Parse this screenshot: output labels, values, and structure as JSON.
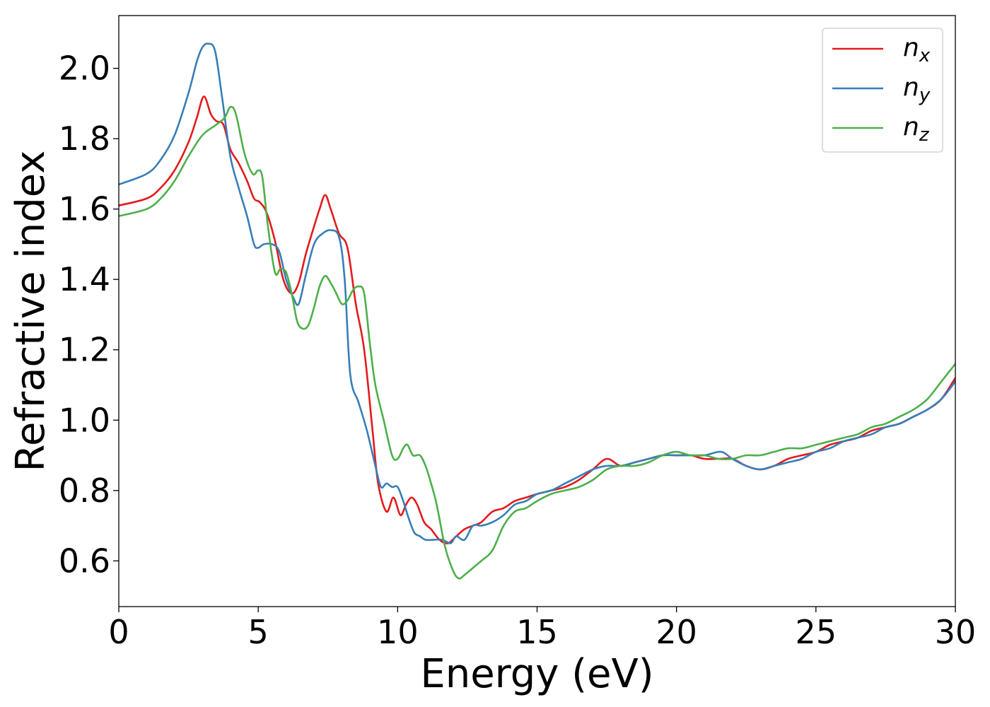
{
  "chart_data": {
    "type": "line",
    "title": "",
    "xlabel": "Energy (eV)",
    "ylabel": "Refractive index",
    "xlim": [
      0,
      30
    ],
    "ylim": [
      0.47,
      2.15
    ],
    "xticks": [
      0,
      5,
      10,
      15,
      20,
      25,
      30
    ],
    "xtick_labels": [
      "0",
      "5",
      "10",
      "15",
      "20",
      "25",
      "30"
    ],
    "yticks": [
      0.6,
      0.8,
      1.0,
      1.2,
      1.4,
      1.6,
      1.8,
      2.0
    ],
    "ytick_labels": [
      "0.6",
      "0.8",
      "1.0",
      "1.2",
      "1.4",
      "1.6",
      "1.8",
      "2.0"
    ],
    "grid": false,
    "legend_position": "top-right",
    "series": [
      {
        "name": "n_x",
        "label_base": "n",
        "label_sub": "x",
        "color": "#e41a1c",
        "x": [
          0,
          1,
          1.5,
          2,
          2.5,
          2.8,
          3.05,
          3.3,
          3.5,
          3.75,
          4.0,
          4.3,
          4.6,
          4.85,
          5.05,
          5.3,
          5.6,
          5.9,
          6.2,
          6.45,
          6.7,
          7.0,
          7.2,
          7.4,
          7.6,
          7.9,
          8.2,
          8.5,
          8.8,
          9.1,
          9.3,
          9.6,
          9.85,
          10.1,
          10.3,
          10.5,
          10.7,
          10.95,
          11.2,
          11.5,
          11.8,
          12.1,
          12.4,
          12.7,
          13.0,
          13.4,
          13.8,
          14.2,
          14.6,
          15.0,
          15.5,
          16.0,
          16.5,
          17.0,
          17.5,
          18.0,
          18.5,
          19.0,
          19.5,
          20.0,
          20.5,
          21.0,
          21.5,
          22.0,
          22.5,
          23.0,
          23.5,
          24.0,
          24.5,
          25.0,
          25.5,
          26.0,
          26.5,
          27.0,
          27.5,
          28.0,
          28.5,
          29.0,
          29.5,
          30.0
        ],
        "y": [
          1.61,
          1.63,
          1.66,
          1.71,
          1.79,
          1.86,
          1.92,
          1.87,
          1.85,
          1.84,
          1.77,
          1.73,
          1.68,
          1.63,
          1.62,
          1.59,
          1.51,
          1.4,
          1.36,
          1.39,
          1.47,
          1.55,
          1.6,
          1.64,
          1.6,
          1.53,
          1.49,
          1.33,
          1.2,
          0.97,
          0.82,
          0.74,
          0.78,
          0.73,
          0.76,
          0.78,
          0.76,
          0.71,
          0.69,
          0.66,
          0.65,
          0.67,
          0.69,
          0.7,
          0.71,
          0.74,
          0.75,
          0.77,
          0.78,
          0.79,
          0.8,
          0.81,
          0.83,
          0.86,
          0.89,
          0.87,
          0.88,
          0.89,
          0.9,
          0.9,
          0.9,
          0.89,
          0.89,
          0.89,
          0.87,
          0.86,
          0.87,
          0.89,
          0.9,
          0.91,
          0.93,
          0.94,
          0.95,
          0.97,
          0.98,
          0.99,
          1.01,
          1.03,
          1.06,
          1.12
        ]
      },
      {
        "name": "n_y",
        "label_base": "n",
        "label_sub": "y",
        "color": "#377eb8",
        "x": [
          0,
          1,
          1.5,
          2,
          2.5,
          2.8,
          3.0,
          3.2,
          3.45,
          3.7,
          4.0,
          4.3,
          4.6,
          4.85,
          5.0,
          5.2,
          5.5,
          5.75,
          6.0,
          6.25,
          6.45,
          6.7,
          7.0,
          7.3,
          7.6,
          7.9,
          8.1,
          8.3,
          8.6,
          8.9,
          9.2,
          9.4,
          9.6,
          9.8,
          10.0,
          10.2,
          10.4,
          10.6,
          10.8,
          11.0,
          11.3,
          11.6,
          11.9,
          12.1,
          12.4,
          12.7,
          13.0,
          13.4,
          13.8,
          14.2,
          14.6,
          15.0,
          15.5,
          16.0,
          16.5,
          17.0,
          17.5,
          18.0,
          18.5,
          19.0,
          19.5,
          20.0,
          20.5,
          21.0,
          21.6,
          22.0,
          22.5,
          23.0,
          23.5,
          24.0,
          24.5,
          25.0,
          25.5,
          26.0,
          26.5,
          27.0,
          27.5,
          28.0,
          28.5,
          29.0,
          29.5,
          30.0
        ],
        "y": [
          1.67,
          1.7,
          1.74,
          1.81,
          1.93,
          2.02,
          2.06,
          2.07,
          2.05,
          1.92,
          1.75,
          1.66,
          1.58,
          1.5,
          1.49,
          1.5,
          1.5,
          1.48,
          1.4,
          1.35,
          1.33,
          1.41,
          1.5,
          1.53,
          1.54,
          1.52,
          1.4,
          1.13,
          1.05,
          0.97,
          0.87,
          0.81,
          0.82,
          0.81,
          0.81,
          0.77,
          0.72,
          0.68,
          0.67,
          0.66,
          0.66,
          0.66,
          0.65,
          0.67,
          0.66,
          0.7,
          0.7,
          0.71,
          0.73,
          0.76,
          0.77,
          0.79,
          0.8,
          0.82,
          0.84,
          0.86,
          0.87,
          0.87,
          0.88,
          0.89,
          0.9,
          0.9,
          0.9,
          0.9,
          0.91,
          0.89,
          0.87,
          0.86,
          0.87,
          0.88,
          0.89,
          0.91,
          0.92,
          0.94,
          0.95,
          0.96,
          0.98,
          0.99,
          1.01,
          1.03,
          1.06,
          1.11
        ]
      },
      {
        "name": "n_z",
        "label_base": "n",
        "label_sub": "z",
        "color": "#4daf4a",
        "x": [
          0,
          1,
          1.5,
          2,
          2.5,
          3.0,
          3.5,
          3.8,
          4.0,
          4.2,
          4.5,
          4.8,
          5.0,
          5.15,
          5.35,
          5.6,
          5.8,
          6.0,
          6.2,
          6.4,
          6.6,
          6.8,
          7.0,
          7.2,
          7.4,
          7.6,
          7.8,
          8.0,
          8.2,
          8.4,
          8.6,
          8.8,
          9.0,
          9.2,
          9.5,
          9.8,
          10.0,
          10.2,
          10.35,
          10.55,
          10.8,
          11.0,
          11.2,
          11.4,
          11.7,
          12.0,
          12.2,
          12.4,
          12.7,
          13.0,
          13.4,
          13.8,
          14.2,
          14.6,
          15.0,
          15.5,
          16.0,
          16.5,
          17.0,
          17.5,
          18.0,
          18.5,
          19.0,
          19.5,
          20.0,
          20.5,
          21.0,
          21.5,
          22.0,
          22.5,
          23.0,
          23.5,
          24.0,
          24.5,
          25.0,
          25.5,
          26.0,
          26.5,
          27.0,
          27.5,
          28.0,
          28.5,
          29.0,
          29.5,
          30.0
        ],
        "y": [
          1.58,
          1.6,
          1.63,
          1.68,
          1.75,
          1.81,
          1.84,
          1.86,
          1.89,
          1.87,
          1.76,
          1.7,
          1.71,
          1.69,
          1.55,
          1.42,
          1.43,
          1.42,
          1.36,
          1.28,
          1.26,
          1.27,
          1.32,
          1.38,
          1.41,
          1.39,
          1.36,
          1.33,
          1.34,
          1.37,
          1.38,
          1.36,
          1.22,
          1.1,
          1.0,
          0.9,
          0.89,
          0.92,
          0.93,
          0.9,
          0.9,
          0.87,
          0.82,
          0.76,
          0.64,
          0.57,
          0.55,
          0.56,
          0.58,
          0.6,
          0.63,
          0.7,
          0.74,
          0.75,
          0.77,
          0.79,
          0.8,
          0.81,
          0.83,
          0.86,
          0.87,
          0.87,
          0.88,
          0.9,
          0.91,
          0.9,
          0.9,
          0.89,
          0.89,
          0.9,
          0.9,
          0.91,
          0.92,
          0.92,
          0.93,
          0.94,
          0.95,
          0.96,
          0.98,
          0.99,
          1.01,
          1.03,
          1.06,
          1.11,
          1.16
        ]
      }
    ]
  }
}
